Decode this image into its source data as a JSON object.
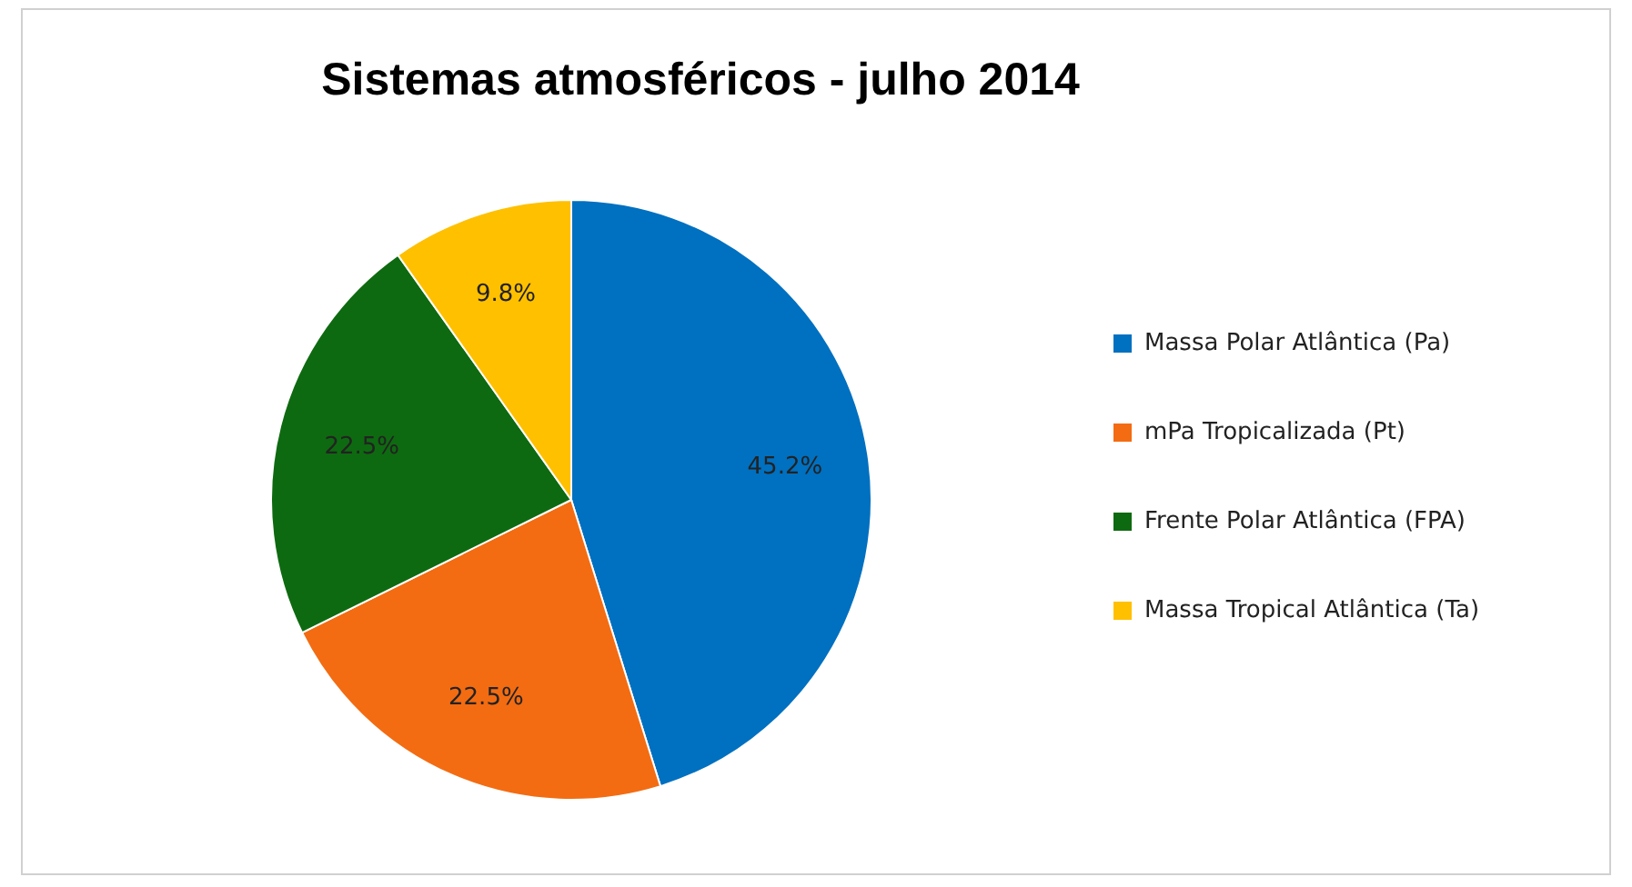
{
  "chart_data": {
    "type": "pie",
    "title": "Sistemas atmosféricos - julho 2014",
    "categories": [
      "Massa Polar Atlântica (Pa)",
      "mPa Tropicalizada (Pt)",
      "Frente Polar Atlântica (FPA)",
      "Massa Tropical Atlântica (Ta)"
    ],
    "values": [
      45.2,
      22.5,
      22.5,
      9.8
    ],
    "colors": [
      "#0070c0",
      "#f36c12",
      "#0e6a10",
      "#ffc000"
    ],
    "value_labels": [
      "45.2%",
      "22.5%",
      "22.5%",
      "9.8%"
    ],
    "legend": "right"
  }
}
